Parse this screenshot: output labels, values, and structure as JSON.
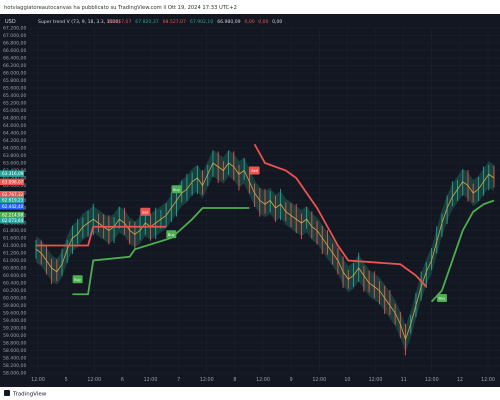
{
  "header": {
    "publish_line": "hotviaggiatoreautocanvas ha pubblicato su TradingView.com il Ott 19, 2024 17:33 UTC+2",
    "symbol": "USD",
    "indicator_name": "Super trend V (73, 9, 18, 3.3, 1000)",
    "indicator_values": [
      "68.157,07",
      "67.820,37",
      "68.527,07",
      "67.902,10",
      "66.980,09",
      "0,00",
      "0,00",
      "0,00"
    ]
  },
  "footer": {
    "brand": "TradingView"
  },
  "colors": {
    "background": "#131722",
    "grid": "#1f2330",
    "price_candles": "#26a69a",
    "band_fill": "#1f5f52",
    "band_fill_bear": "#8a6a1e",
    "trend_up": "#4caf50",
    "trend_down": "#ef5350",
    "axis_text": "#9aa0ac"
  },
  "chart_data": {
    "type": "line",
    "y_ticks": [
      "67.200,00",
      "67.000,00",
      "66.800,00",
      "66.600,00",
      "66.400,00",
      "66.200,00",
      "66.000,00",
      "65.800,00",
      "65.600,00",
      "65.400,00",
      "65.200,00",
      "65.000,00",
      "64.800,00",
      "64.600,00",
      "64.400,00",
      "64.200,00",
      "64.000,00",
      "63.800,00",
      "63.600,00",
      "63.400,00",
      "63.200,00",
      "63.000,00",
      "62.800,00",
      "62.600,00",
      "62.400,00",
      "62.200,00",
      "62.000,00",
      "61.800,00",
      "61.600,00",
      "61.400,00",
      "61.200,00",
      "61.000,00",
      "60.800,00",
      "60.600,00",
      "60.400,00",
      "60.200,00",
      "60.000,00",
      "59.800,00",
      "59.600,00",
      "59.400,00",
      "59.200,00",
      "59.000,00",
      "58.800,00",
      "58.600,00",
      "58.400,00",
      "58.200,00",
      "58.000,00",
      "57.800,00",
      "57.600,00",
      "57.400,00",
      "57.200,00",
      "57.000,00",
      "56.800,00",
      "56.600,00",
      "56.400,00",
      "56.200,00",
      "56.000,00",
      "55.800,00",
      "55.600,00",
      "55.400,00",
      "55.200,00",
      "55.000,00",
      "54.800,00",
      "54.600,00",
      "54.400,00",
      "54.200,00",
      "54.000,00",
      "53.800,00",
      "53.600,00",
      "53.400,00",
      "53.200,00",
      "53.000,00",
      "52.800,00",
      "52.600,00",
      "52.400,00",
      "52.200,00",
      "52.000,00",
      "51.800,00",
      "51.600,00",
      "51.400,00",
      "51.200,00",
      "51.000,00",
      "50.800,00",
      "50.600,00",
      "50.400,00",
      "50.200,00",
      "50.000,00",
      "49.800,00",
      "49.600,00",
      "49.400,00",
      "49.200,00",
      "49.000,00",
      "48.800,00",
      "48.600,00",
      "48.400,00",
      "48.200,00",
      "48.000,00"
    ],
    "x_ticks": [
      "12:00",
      "5",
      "12:00",
      "6",
      "12:00",
      "7",
      "12:00",
      "8",
      "12:00",
      "9",
      "12:00",
      "10",
      "12:00",
      "11",
      "12:00",
      "12",
      "12:00"
    ],
    "price_tags": [
      {
        "text": "63.316,09",
        "color": "#26a69a"
      },
      {
        "text": "63.096,07",
        "color": "#ef5350"
      },
      {
        "text": "62.767,32",
        "color": "#ef5350"
      },
      {
        "text": "62.619,23",
        "color": "#26a69a"
      },
      {
        "text": "62.442,40",
        "color": "#2962ff"
      },
      {
        "text": "62.214,98",
        "color": "#4caf50"
      },
      {
        "text": "62.073,64",
        "color": "#26a69a"
      }
    ],
    "price": [
      61.3,
      61.2,
      61.0,
      60.8,
      60.7,
      60.9,
      61.3,
      61.6,
      61.7,
      61.9,
      62.0,
      62.1,
      62.0,
      61.9,
      61.8,
      61.9,
      62.1,
      62.0,
      61.8,
      61.7,
      61.8,
      62.0,
      61.9,
      62.0,
      62.1,
      62.2,
      62.4,
      62.6,
      62.8,
      62.9,
      63.1,
      63.2,
      63.0,
      63.3,
      63.6,
      63.5,
      63.4,
      63.6,
      63.5,
      63.3,
      63.4,
      63.1,
      62.8,
      62.6,
      62.5,
      62.6,
      62.4,
      62.5,
      62.3,
      62.2,
      62.1,
      62.0,
      62.1,
      61.9,
      61.8,
      61.6,
      61.4,
      61.2,
      61.0,
      60.7,
      60.5,
      60.6,
      60.8,
      60.6,
      60.4,
      60.3,
      60.2,
      60.0,
      59.8,
      59.6,
      59.3,
      58.9,
      59.3,
      59.8,
      60.3,
      60.7,
      61.0,
      61.5,
      62.0,
      62.4,
      62.7,
      62.9,
      63.1,
      63.0,
      62.8,
      62.9,
      63.1,
      63.3,
      63.2
    ],
    "supertrend_segments": [
      {
        "dir": "down",
        "points": [
          [
            0,
            61.4
          ],
          [
            10,
            61.4
          ],
          [
            11,
            61.9
          ],
          [
            20,
            61.9
          ],
          [
            21,
            61.9
          ],
          [
            25,
            61.9
          ]
        ]
      },
      {
        "dir": "up",
        "points": [
          [
            7,
            60.1
          ],
          [
            10,
            60.1
          ],
          [
            11,
            61.0
          ],
          [
            18,
            61.1
          ],
          [
            19,
            61.3
          ],
          [
            26,
            61.6
          ],
          [
            30,
            62.1
          ],
          [
            32,
            62.4
          ],
          [
            41,
            62.4
          ]
        ]
      },
      {
        "dir": "down",
        "points": [
          [
            42,
            64.1
          ],
          [
            44,
            63.6
          ],
          [
            48,
            63.4
          ],
          [
            50,
            63.2
          ],
          [
            52,
            62.8
          ],
          [
            54,
            62.4
          ],
          [
            56,
            61.9
          ],
          [
            58,
            61.4
          ],
          [
            60,
            61.0
          ],
          [
            70,
            60.9
          ],
          [
            73,
            60.6
          ],
          [
            75,
            60.3
          ]
        ]
      },
      {
        "dir": "up",
        "points": [
          [
            76,
            59.9
          ],
          [
            78,
            60.2
          ],
          [
            80,
            61.0
          ],
          [
            82,
            61.8
          ],
          [
            84,
            62.3
          ],
          [
            86,
            62.5
          ],
          [
            88,
            62.6
          ]
        ]
      }
    ],
    "signals": [
      {
        "label": "Sell",
        "idx": 21,
        "value": 62.3,
        "dir": "down"
      },
      {
        "label": "Buy",
        "idx": 8,
        "value": 60.5,
        "dir": "up"
      },
      {
        "label": "Buy",
        "idx": 26,
        "value": 61.7,
        "dir": "up"
      },
      {
        "label": "Buy",
        "idx": 27,
        "value": 62.9,
        "dir": "up"
      },
      {
        "label": "Sell",
        "idx": 42,
        "value": 63.4,
        "dir": "down"
      },
      {
        "label": "Buy",
        "idx": 78,
        "value": 60.0,
        "dir": "up"
      }
    ]
  }
}
